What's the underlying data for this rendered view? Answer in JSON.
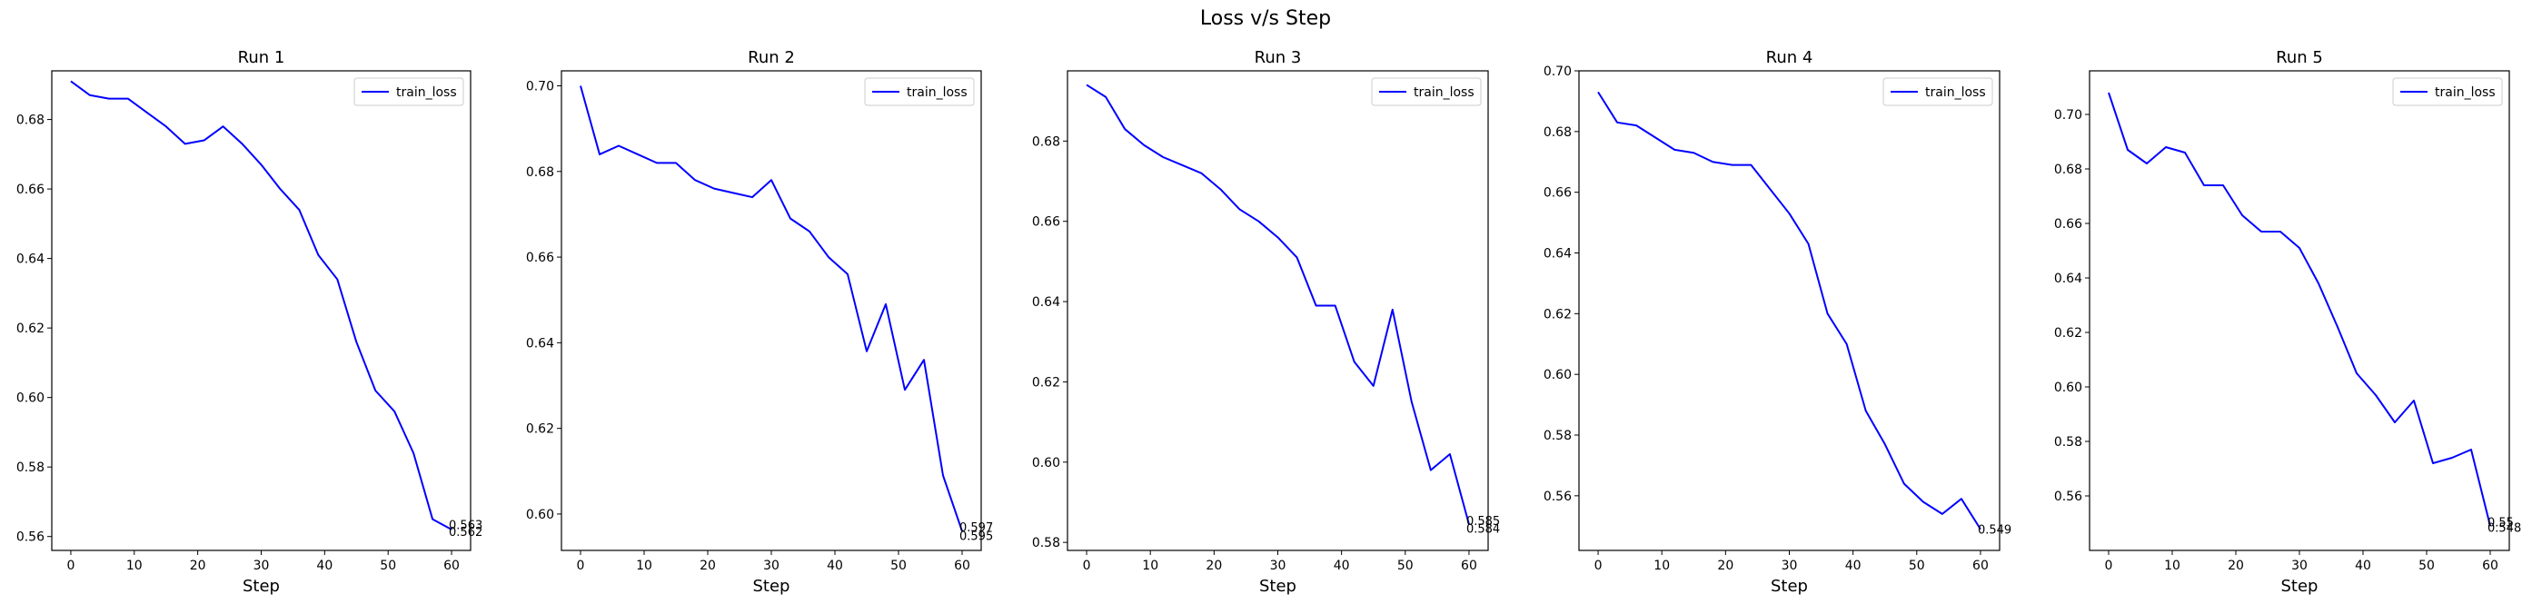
{
  "figure": {
    "suptitle": "Loss v/s Step"
  },
  "style": {
    "line_color": "#0000ff",
    "axis_color": "#000000"
  },
  "chart_data": [
    {
      "type": "line",
      "title": "Run 1",
      "xlabel": "Step",
      "ylabel": "",
      "grid": false,
      "legend": {
        "position": "top-right"
      },
      "xlim": [
        -3,
        63
      ],
      "ylim": [
        0.556,
        0.694
      ],
      "xticks": [
        0,
        10,
        20,
        30,
        40,
        50,
        60
      ],
      "yticks": [
        0.56,
        0.58,
        0.6,
        0.62,
        0.64,
        0.66,
        0.68
      ],
      "ytick_labels": [
        "0.56",
        "0.58",
        "0.60",
        "0.62",
        "0.64",
        "0.66",
        "0.68"
      ],
      "series": [
        {
          "name": "train_loss",
          "x": [
            0,
            3,
            6,
            9,
            12,
            15,
            18,
            21,
            24,
            27,
            30,
            33,
            36,
            39,
            42,
            45,
            48,
            51,
            54,
            57,
            60
          ],
          "y": [
            0.691,
            0.687,
            0.686,
            0.686,
            0.682,
            0.678,
            0.673,
            0.674,
            0.678,
            0.673,
            0.667,
            0.66,
            0.654,
            0.641,
            0.634,
            0.616,
            0.602,
            0.596,
            0.584,
            0.565,
            0.562
          ]
        }
      ],
      "annotations": [
        {
          "text": "0.563",
          "x": 60,
          "y": 0.5635
        },
        {
          "text": "0.562",
          "x": 60,
          "y": 0.5615
        }
      ]
    },
    {
      "type": "line",
      "title": "Run 2",
      "xlabel": "Step",
      "ylabel": "",
      "grid": false,
      "legend": {
        "position": "top-right"
      },
      "xlim": [
        -3,
        63
      ],
      "ylim": [
        0.5915,
        0.7035
      ],
      "xticks": [
        0,
        10,
        20,
        30,
        40,
        50,
        60
      ],
      "yticks": [
        0.6,
        0.62,
        0.64,
        0.66,
        0.68,
        0.7
      ],
      "ytick_labels": [
        "0.60",
        "0.62",
        "0.64",
        "0.66",
        "0.68",
        "0.70"
      ],
      "series": [
        {
          "name": "train_loss",
          "x": [
            0,
            3,
            6,
            9,
            12,
            15,
            18,
            21,
            24,
            27,
            30,
            33,
            36,
            39,
            42,
            45,
            48,
            51,
            54,
            57,
            60
          ],
          "y": [
            0.7,
            0.684,
            0.686,
            0.684,
            0.682,
            0.682,
            0.678,
            0.676,
            0.675,
            0.674,
            0.678,
            0.669,
            0.666,
            0.66,
            0.656,
            0.638,
            0.649,
            0.629,
            0.636,
            0.609,
            0.596
          ]
        }
      ],
      "annotations": [
        {
          "text": "0.597",
          "x": 60,
          "y": 0.597
        },
        {
          "text": "0.595",
          "x": 60,
          "y": 0.595
        }
      ]
    },
    {
      "type": "line",
      "title": "Run 3",
      "xlabel": "Step",
      "ylabel": "",
      "grid": false,
      "legend": {
        "position": "top-right"
      },
      "xlim": [
        -3,
        63
      ],
      "ylim": [
        0.578,
        0.6975
      ],
      "xticks": [
        0,
        10,
        20,
        30,
        40,
        50,
        60
      ],
      "yticks": [
        0.58,
        0.6,
        0.62,
        0.64,
        0.66,
        0.68
      ],
      "ytick_labels": [
        "0.58",
        "0.60",
        "0.62",
        "0.64",
        "0.66",
        "0.68"
      ],
      "series": [
        {
          "name": "train_loss",
          "x": [
            0,
            3,
            6,
            9,
            12,
            15,
            18,
            21,
            24,
            27,
            30,
            33,
            36,
            39,
            42,
            45,
            48,
            51,
            54,
            57,
            60
          ],
          "y": [
            0.694,
            0.691,
            0.683,
            0.679,
            0.676,
            0.674,
            0.672,
            0.668,
            0.663,
            0.66,
            0.656,
            0.651,
            0.639,
            0.639,
            0.625,
            0.619,
            0.638,
            0.615,
            0.598,
            0.602,
            0.5845
          ]
        }
      ],
      "annotations": [
        {
          "text": "0.585",
          "x": 60,
          "y": 0.5855
        },
        {
          "text": "0.584",
          "x": 60,
          "y": 0.5835
        }
      ]
    },
    {
      "type": "line",
      "title": "Run 4",
      "xlabel": "Step",
      "ylabel": "",
      "grid": false,
      "legend": {
        "position": "top-right"
      },
      "xlim": [
        -3,
        63
      ],
      "ylim": [
        0.542,
        0.7
      ],
      "xticks": [
        0,
        10,
        20,
        30,
        40,
        50,
        60
      ],
      "yticks": [
        0.56,
        0.58,
        0.6,
        0.62,
        0.64,
        0.66,
        0.68,
        0.7
      ],
      "ytick_labels": [
        "0.56",
        "0.58",
        "0.60",
        "0.62",
        "0.64",
        "0.66",
        "0.68",
        "0.70"
      ],
      "series": [
        {
          "name": "train_loss",
          "x": [
            0,
            3,
            6,
            9,
            12,
            15,
            18,
            21,
            24,
            27,
            30,
            33,
            36,
            39,
            42,
            45,
            48,
            51,
            54,
            57,
            60
          ],
          "y": [
            0.693,
            0.683,
            0.682,
            0.678,
            0.674,
            0.673,
            0.67,
            0.669,
            0.669,
            0.661,
            0.653,
            0.643,
            0.62,
            0.61,
            0.588,
            0.577,
            0.564,
            0.558,
            0.554,
            0.559,
            0.549
          ]
        }
      ],
      "annotations": [
        {
          "text": "0.549",
          "x": 60,
          "y": 0.549
        }
      ]
    },
    {
      "type": "line",
      "title": "Run 5",
      "xlabel": "Step",
      "ylabel": "",
      "grid": false,
      "legend": {
        "position": "top-right"
      },
      "xlim": [
        -3,
        63
      ],
      "ylim": [
        0.54,
        0.716
      ],
      "xticks": [
        0,
        10,
        20,
        30,
        40,
        50,
        60
      ],
      "yticks": [
        0.56,
        0.58,
        0.6,
        0.62,
        0.64,
        0.66,
        0.68,
        0.7
      ],
      "ytick_labels": [
        "0.56",
        "0.58",
        "0.60",
        "0.62",
        "0.64",
        "0.66",
        "0.68",
        "0.70"
      ],
      "series": [
        {
          "name": "train_loss",
          "x": [
            0,
            3,
            6,
            9,
            12,
            15,
            18,
            21,
            24,
            27,
            30,
            33,
            36,
            39,
            42,
            45,
            48,
            51,
            54,
            57,
            60
          ],
          "y": [
            0.708,
            0.687,
            0.682,
            0.688,
            0.686,
            0.674,
            0.674,
            0.663,
            0.657,
            0.657,
            0.651,
            0.638,
            0.622,
            0.605,
            0.597,
            0.587,
            0.595,
            0.572,
            0.574,
            0.577,
            0.549
          ]
        }
      ],
      "annotations": [
        {
          "text": "0.55",
          "x": 60,
          "y": 0.5505
        },
        {
          "text": "0.548",
          "x": 60,
          "y": 0.5485
        }
      ]
    }
  ]
}
